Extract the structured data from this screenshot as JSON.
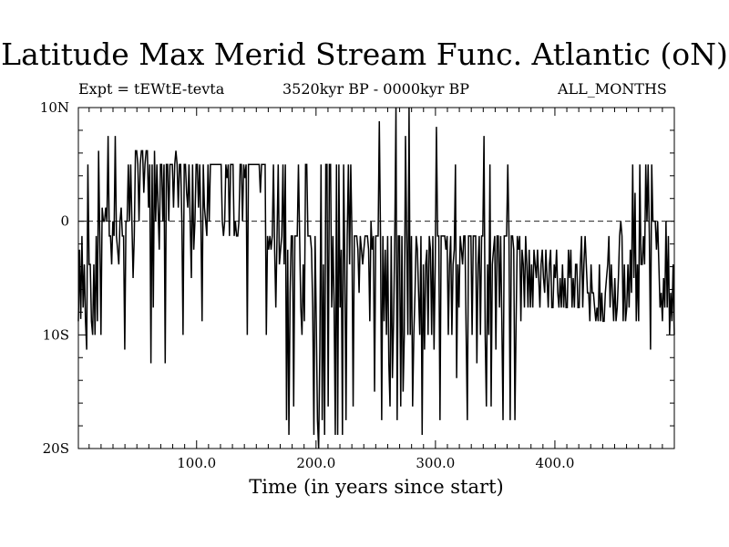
{
  "chart_data": {
    "type": "line",
    "title": "Latitude Max Merid Stream Func. Atlantic (oN)",
    "experiment_label": "Expt = tEWtE-tevta",
    "period_label": "3520kyr BP - 0000kyr BP",
    "months_label": "ALL_MONTHS",
    "xlabel": "Time (in years since start)",
    "ylabel": "",
    "xlim": [
      1,
      500
    ],
    "ylim": [
      -20,
      10
    ],
    "x_ticks": [
      100,
      200,
      300,
      400
    ],
    "x_tick_labels": [
      "100.0",
      "200.0",
      "300.0",
      "400.0"
    ],
    "y_ticks": [
      10,
      0,
      -10,
      -20
    ],
    "y_tick_labels": [
      "10N",
      "0",
      "10S",
      "20S"
    ],
    "reference_line": 0,
    "series": [
      {
        "name": "Latitude of max meridional stream function",
        "values": [
          -8.8,
          -2.5,
          -8.6,
          -1.3,
          -7.6,
          -3.8,
          -8.8,
          -11.3,
          5.0,
          -3.8,
          -3.8,
          -8.8,
          -10.0,
          -3.8,
          -10.0,
          -1.3,
          -8.8,
          6.2,
          -1.3,
          -10.0,
          1.2,
          0.0,
          0.0,
          1.2,
          0.0,
          7.5,
          -1.3,
          -1.3,
          -3.8,
          0.0,
          -1.3,
          7.5,
          -1.3,
          -2.5,
          -3.8,
          0.0,
          1.2,
          -1.3,
          -1.3,
          -11.3,
          0.0,
          0.0,
          5.0,
          0.0,
          5.0,
          0.0,
          -5.0,
          -1.3,
          6.2,
          6.2,
          5.0,
          0.0,
          5.0,
          6.2,
          6.2,
          2.5,
          5.0,
          6.2,
          6.2,
          1.2,
          5.0,
          -12.5,
          5.0,
          -7.6,
          6.2,
          0.0,
          5.0,
          1.2,
          -2.5,
          5.0,
          5.0,
          0.0,
          5.0,
          -12.5,
          5.0,
          5.0,
          0.0,
          5.0,
          5.0,
          5.0,
          1.2,
          5.0,
          6.2,
          5.0,
          1.2,
          5.0,
          5.0,
          0.0,
          -10.0,
          5.0,
          5.0,
          2.5,
          1.2,
          5.0,
          0.0,
          -5.0,
          5.0,
          -2.5,
          0.0,
          5.0,
          5.0,
          1.2,
          5.0,
          0.0,
          -8.8,
          5.0,
          1.2,
          0.0,
          -1.3,
          5.0,
          0.0,
          5.0,
          5.0,
          5.0,
          5.0,
          5.0,
          5.0,
          5.0,
          5.0,
          5.0,
          5.0,
          0.0,
          -1.3,
          0.0,
          5.0,
          3.8,
          5.0,
          -1.3,
          5.0,
          5.0,
          5.0,
          -1.3,
          0.0,
          -1.3,
          -1.3,
          0.0,
          5.0,
          5.0,
          0.0,
          5.0,
          3.8,
          5.0,
          -10.0,
          5.0,
          5.0,
          5.0,
          5.0,
          5.0,
          5.0,
          5.0,
          5.0,
          5.0,
          5.0,
          2.5,
          5.0,
          5.0,
          5.0,
          5.0,
          -10.0,
          -1.3,
          -2.5,
          -1.3,
          -2.5,
          -1.3,
          5.0,
          -2.5,
          -7.6,
          -1.3,
          5.0,
          -3.8,
          -2.5,
          -1.3,
          5.0,
          -3.8,
          5.0,
          -17.5,
          -2.5,
          -18.8,
          -6.3,
          -1.3,
          -1.3,
          -16.3,
          -1.3,
          -1.3,
          -1.3,
          5.0,
          -1.3,
          -7.6,
          -10.0,
          -3.8,
          -8.8,
          5.0,
          5.0,
          -1.3,
          -1.3,
          -1.3,
          -2.5,
          -7.6,
          -18.8,
          -1.3,
          -8.8,
          -17.5,
          -20.0,
          -11.3,
          5.0,
          -17.5,
          -3.8,
          -18.8,
          5.0,
          5.0,
          -16.3,
          5.0,
          5.0,
          -7.6,
          -1.3,
          -7.6,
          -18.8,
          5.0,
          -18.8,
          5.0,
          -7.6,
          -2.5,
          -18.8,
          5.0,
          -3.8,
          -17.5,
          -1.3,
          5.0,
          -3.8,
          5.0,
          -1.3,
          -16.3,
          -1.3,
          -1.3,
          -1.3,
          -2.5,
          -6.3,
          -1.3,
          -2.5,
          -3.8,
          -2.5,
          -1.3,
          -1.3,
          -1.3,
          -2.5,
          -8.8,
          0.0,
          -2.5,
          -1.3,
          -15.0,
          -1.3,
          -1.3,
          -1.3,
          8.8,
          -1.3,
          -17.5,
          -1.3,
          -8.8,
          -2.5,
          -10.0,
          -1.3,
          -12.5,
          -16.3,
          -1.3,
          -13.8,
          -8.8,
          -1.3,
          10.0,
          -17.5,
          -1.3,
          -1.3,
          -16.3,
          -1.3,
          -15.0,
          -10.0,
          7.5,
          -1.3,
          -10.0,
          10.0,
          -10.0,
          -1.3,
          -16.3,
          -10.0,
          -6.3,
          -1.3,
          -2.5,
          -6.3,
          -10.0,
          -1.3,
          -18.8,
          -3.8,
          -11.3,
          -3.8,
          -2.5,
          -10.0,
          -1.3,
          -2.5,
          -10.0,
          -1.3,
          -11.3,
          -3.8,
          8.3,
          -1.3,
          -1.3,
          -17.5,
          -1.3,
          -1.3,
          -1.3,
          -1.3,
          -2.5,
          -1.3,
          -10.0,
          -3.8,
          -1.3,
          -10.0,
          -3.8,
          -2.5,
          5.0,
          -13.8,
          -3.8,
          -7.6,
          -1.3,
          -2.5,
          -3.8,
          -1.3,
          -1.3,
          -10.0,
          -17.5,
          -1.3,
          -1.3,
          -1.3,
          -10.0,
          -1.3,
          -1.3,
          -1.3,
          -12.5,
          -3.8,
          -1.3,
          -10.0,
          -1.3,
          -1.3,
          7.5,
          -10.0,
          -16.3,
          -3.8,
          -10.0,
          5.0,
          -16.3,
          -3.8,
          -2.5,
          -1.3,
          -11.3,
          -1.3,
          -1.3,
          -7.6,
          -1.3,
          -8.8,
          -17.5,
          -1.3,
          -1.3,
          -1.3,
          5.0,
          -1.3,
          -17.5,
          -1.3,
          -1.3,
          -2.5,
          -17.5,
          -8.8,
          -1.3,
          -2.5,
          -1.3,
          -8.8,
          -2.5,
          -3.8,
          -7.6,
          -1.3,
          -3.8,
          -7.6,
          -2.5,
          -7.6,
          -3.8,
          -7.6,
          -2.5,
          -3.8,
          -5.0,
          -2.5,
          -5.0,
          -7.6,
          -3.8,
          -2.5,
          -5.0,
          -6.3,
          -2.5,
          -5.0,
          -7.6,
          -3.8,
          -2.5,
          -7.6,
          -7.6,
          -3.8,
          -5.0,
          -2.5,
          -6.3,
          -7.6,
          -5.0,
          -7.6,
          -3.8,
          -7.6,
          -5.0,
          -7.6,
          -7.6,
          -2.5,
          -5.0,
          -2.5,
          -7.6,
          -5.0,
          -7.6,
          -3.8,
          -3.8,
          -7.6,
          -7.6,
          -3.8,
          -1.3,
          -7.6,
          -3.8,
          -1.3,
          -3.8,
          -6.3,
          -6.3,
          -8.8,
          -3.8,
          -6.3,
          -6.3,
          -7.6,
          -8.8,
          -7.6,
          -8.8,
          -3.8,
          -8.8,
          -6.3,
          -8.8,
          -8.8,
          -6.3,
          -5.0,
          -3.8,
          -1.3,
          -7.6,
          -3.8,
          -6.3,
          -8.8,
          -5.0,
          -8.8,
          -7.6,
          -5.0,
          -1.3,
          0.0,
          -1.3,
          -8.8,
          -3.8,
          -8.8,
          -7.6,
          -3.8,
          -7.6,
          -2.5,
          -6.3,
          5.0,
          -5.0,
          2.5,
          -8.8,
          -3.8,
          -8.8,
          5.0,
          -3.8,
          -3.8,
          -1.3,
          -3.8,
          5.0,
          0.0,
          5.0,
          -1.3,
          -11.3,
          5.0,
          0.0,
          0.0,
          0.0,
          -2.5,
          0.0,
          -3.8,
          -7.6,
          -6.3,
          -8.8,
          -5.0,
          -7.6,
          0.0,
          -7.6,
          -1.3,
          -10.0,
          -6.3,
          -8.8,
          -3.8,
          -10.0
        ]
      }
    ]
  }
}
